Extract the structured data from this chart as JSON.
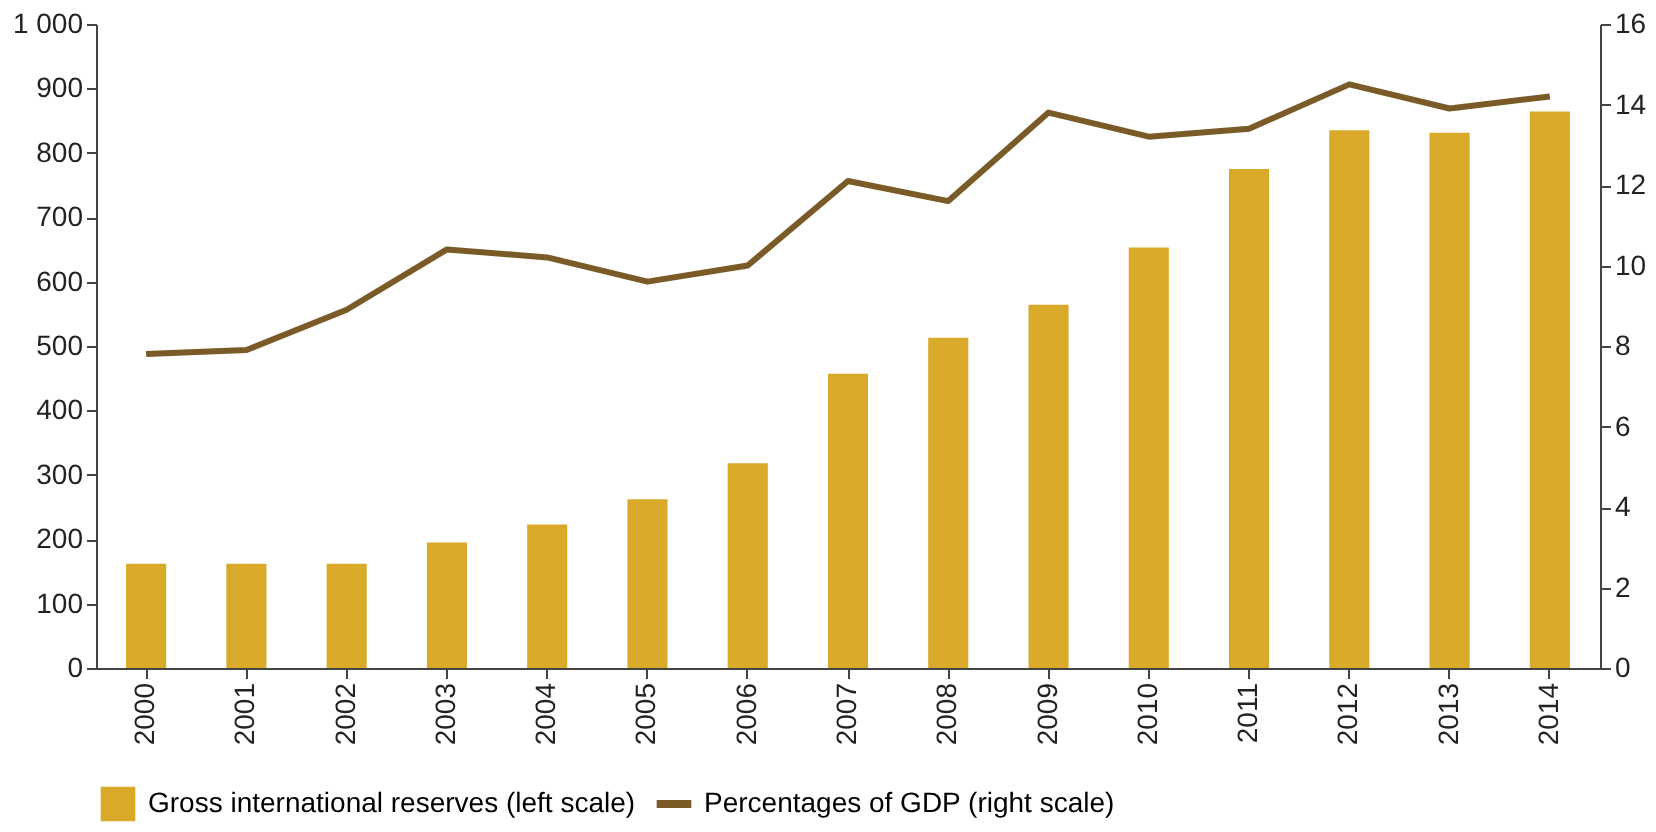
{
  "chart_data": {
    "type": "bar",
    "categories": [
      "2000",
      "2001",
      "2002",
      "2003",
      "2004",
      "2005",
      "2006",
      "2007",
      "2008",
      "2009",
      "2010",
      "2011",
      "2012",
      "2013",
      "2014"
    ],
    "series": [
      {
        "name": "Gross international reserves (left scale)",
        "color": "#d9a92a",
        "values": [
          162,
          162,
          162,
          195,
          223,
          262,
          318,
          457,
          513,
          564,
          653,
          775,
          835,
          831,
          864
        ]
      },
      {
        "name": "Percentages of GDP (right scale)",
        "type": "line",
        "axis": "y2",
        "color": "#7a5a26",
        "values": [
          7.8,
          7.9,
          8.9,
          10.4,
          10.2,
          9.6,
          10.0,
          12.1,
          11.6,
          13.8,
          13.2,
          13.4,
          14.5,
          13.9,
          14.2
        ]
      }
    ],
    "ylim": [
      0,
      1000
    ],
    "yticks": [
      0,
      100,
      200,
      300,
      400,
      500,
      600,
      700,
      800,
      900,
      {
        "value": 1000,
        "label": "1 000"
      }
    ],
    "y2lim": [
      0,
      16
    ],
    "y2ticks": [
      0,
      2,
      4,
      6,
      8,
      10,
      12,
      14,
      16
    ],
    "grid": false,
    "legend": "bottom",
    "line_style": "solid",
    "marker": "none"
  }
}
